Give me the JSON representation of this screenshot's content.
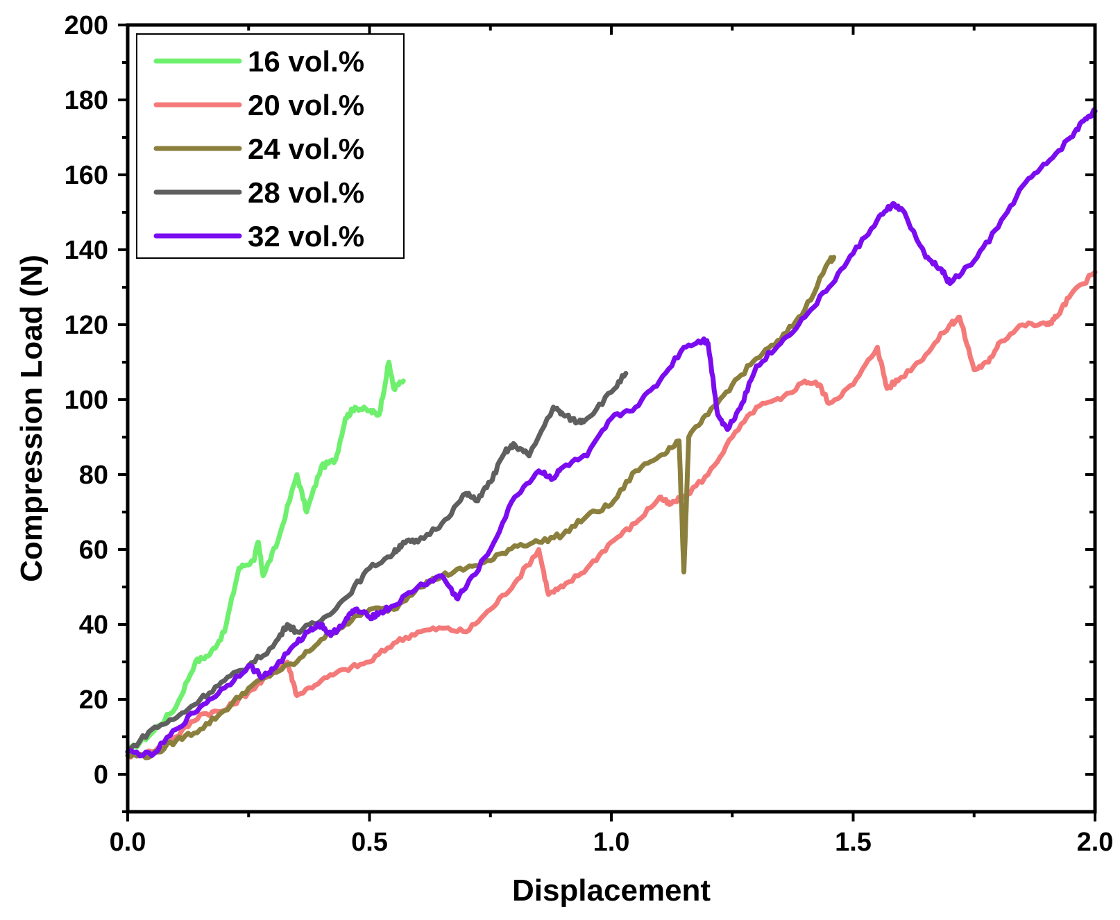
{
  "chart_data": {
    "type": "line",
    "xlabel": "Displacement",
    "ylabel": "Compression Load (N)",
    "xlim": [
      0,
      2.0
    ],
    "ylim": [
      -10,
      200
    ],
    "x_ticks": [
      "0.0",
      "0.5",
      "1.0",
      "1.5",
      "2.0"
    ],
    "y_ticks": [
      "0",
      "20",
      "40",
      "60",
      "80",
      "100",
      "120",
      "140",
      "160",
      "180",
      "200"
    ],
    "legend_position": "top-left",
    "grid": false,
    "series": [
      {
        "name": "16 vol.%",
        "color": "#6ef06e",
        "points": [
          [
            0.0,
            6
          ],
          [
            0.05,
            11
          ],
          [
            0.1,
            18
          ],
          [
            0.14,
            30
          ],
          [
            0.17,
            32
          ],
          [
            0.2,
            38
          ],
          [
            0.23,
            55
          ],
          [
            0.26,
            57
          ],
          [
            0.27,
            62
          ],
          [
            0.28,
            53
          ],
          [
            0.31,
            62
          ],
          [
            0.35,
            80
          ],
          [
            0.37,
            70
          ],
          [
            0.4,
            82
          ],
          [
            0.43,
            84
          ],
          [
            0.45,
            95
          ],
          [
            0.47,
            98
          ],
          [
            0.5,
            97
          ],
          [
            0.52,
            96
          ],
          [
            0.54,
            110
          ],
          [
            0.55,
            103
          ],
          [
            0.57,
            105
          ]
        ]
      },
      {
        "name": "20 vol.%",
        "color": "#f47a7a",
        "points": [
          [
            0.0,
            5
          ],
          [
            0.05,
            6
          ],
          [
            0.1,
            10
          ],
          [
            0.15,
            16
          ],
          [
            0.2,
            17
          ],
          [
            0.25,
            22
          ],
          [
            0.3,
            27
          ],
          [
            0.33,
            30
          ],
          [
            0.35,
            21
          ],
          [
            0.4,
            25
          ],
          [
            0.45,
            28
          ],
          [
            0.5,
            30
          ],
          [
            0.55,
            35
          ],
          [
            0.6,
            38
          ],
          [
            0.65,
            39
          ],
          [
            0.7,
            38
          ],
          [
            0.75,
            44
          ],
          [
            0.8,
            51
          ],
          [
            0.85,
            60
          ],
          [
            0.87,
            48
          ],
          [
            0.9,
            50
          ],
          [
            0.95,
            55
          ],
          [
            1.0,
            62
          ],
          [
            1.05,
            67
          ],
          [
            1.1,
            74
          ],
          [
            1.12,
            72
          ],
          [
            1.15,
            74
          ],
          [
            1.2,
            80
          ],
          [
            1.25,
            90
          ],
          [
            1.3,
            98
          ],
          [
            1.35,
            100
          ],
          [
            1.4,
            105
          ],
          [
            1.43,
            104
          ],
          [
            1.45,
            99
          ],
          [
            1.5,
            104
          ],
          [
            1.55,
            114
          ],
          [
            1.57,
            103
          ],
          [
            1.6,
            106
          ],
          [
            1.65,
            112
          ],
          [
            1.7,
            120
          ],
          [
            1.72,
            122
          ],
          [
            1.75,
            108
          ],
          [
            1.78,
            110
          ],
          [
            1.8,
            115
          ],
          [
            1.85,
            120
          ],
          [
            1.9,
            120
          ],
          [
            1.92,
            122
          ],
          [
            1.95,
            128
          ],
          [
            2.0,
            134
          ]
        ]
      },
      {
        "name": "24 vol.%",
        "color": "#8a7f3c",
        "points": [
          [
            0.0,
            5
          ],
          [
            0.05,
            5
          ],
          [
            0.1,
            9
          ],
          [
            0.15,
            12
          ],
          [
            0.2,
            17
          ],
          [
            0.25,
            23
          ],
          [
            0.3,
            27
          ],
          [
            0.35,
            30
          ],
          [
            0.4,
            36
          ],
          [
            0.45,
            40
          ],
          [
            0.5,
            44
          ],
          [
            0.55,
            44
          ],
          [
            0.6,
            50
          ],
          [
            0.65,
            53
          ],
          [
            0.7,
            55
          ],
          [
            0.75,
            57
          ],
          [
            0.8,
            61
          ],
          [
            0.85,
            62
          ],
          [
            0.9,
            64
          ],
          [
            0.95,
            69
          ],
          [
            1.0,
            72
          ],
          [
            1.05,
            81
          ],
          [
            1.1,
            85
          ],
          [
            1.14,
            89
          ],
          [
            1.15,
            54
          ],
          [
            1.16,
            90
          ],
          [
            1.2,
            96
          ],
          [
            1.25,
            104
          ],
          [
            1.3,
            111
          ],
          [
            1.35,
            116
          ],
          [
            1.4,
            124
          ],
          [
            1.45,
            137
          ],
          [
            1.46,
            138
          ]
        ]
      },
      {
        "name": "28 vol.%",
        "color": "#5f5f5f",
        "points": [
          [
            0.0,
            6
          ],
          [
            0.05,
            12
          ],
          [
            0.1,
            15
          ],
          [
            0.15,
            20
          ],
          [
            0.2,
            25
          ],
          [
            0.25,
            29
          ],
          [
            0.3,
            34
          ],
          [
            0.33,
            40
          ],
          [
            0.35,
            38
          ],
          [
            0.4,
            41
          ],
          [
            0.45,
            47
          ],
          [
            0.5,
            55
          ],
          [
            0.55,
            59
          ],
          [
            0.57,
            62
          ],
          [
            0.6,
            62
          ],
          [
            0.65,
            67
          ],
          [
            0.7,
            75
          ],
          [
            0.72,
            73
          ],
          [
            0.75,
            78
          ],
          [
            0.78,
            86
          ],
          [
            0.8,
            88
          ],
          [
            0.83,
            85
          ],
          [
            0.88,
            98
          ],
          [
            0.9,
            96
          ],
          [
            0.93,
            94
          ],
          [
            0.95,
            95
          ],
          [
            1.0,
            102
          ],
          [
            1.03,
            107
          ]
        ]
      },
      {
        "name": "32 vol.%",
        "color": "#7b0cf0",
        "points": [
          [
            0.0,
            6
          ],
          [
            0.05,
            5
          ],
          [
            0.1,
            12
          ],
          [
            0.15,
            18
          ],
          [
            0.2,
            23
          ],
          [
            0.25,
            29
          ],
          [
            0.28,
            26
          ],
          [
            0.3,
            28
          ],
          [
            0.35,
            35
          ],
          [
            0.38,
            39
          ],
          [
            0.4,
            40
          ],
          [
            0.42,
            37
          ],
          [
            0.45,
            41
          ],
          [
            0.47,
            44
          ],
          [
            0.5,
            42
          ],
          [
            0.52,
            43
          ],
          [
            0.55,
            45
          ],
          [
            0.6,
            50
          ],
          [
            0.65,
            53
          ],
          [
            0.68,
            47
          ],
          [
            0.7,
            50
          ],
          [
            0.75,
            60
          ],
          [
            0.8,
            74
          ],
          [
            0.85,
            81
          ],
          [
            0.88,
            79
          ],
          [
            0.9,
            82
          ],
          [
            0.95,
            85
          ],
          [
            1.0,
            95
          ],
          [
            1.05,
            98
          ],
          [
            1.1,
            105
          ],
          [
            1.15,
            114
          ],
          [
            1.19,
            116
          ],
          [
            1.2,
            115
          ],
          [
            1.22,
            96
          ],
          [
            1.24,
            92
          ],
          [
            1.27,
            99
          ],
          [
            1.3,
            109
          ],
          [
            1.35,
            115
          ],
          [
            1.4,
            122
          ],
          [
            1.45,
            130
          ],
          [
            1.5,
            139
          ],
          [
            1.55,
            148
          ],
          [
            1.58,
            152
          ],
          [
            1.6,
            151
          ],
          [
            1.65,
            138
          ],
          [
            1.68,
            135
          ],
          [
            1.7,
            131
          ],
          [
            1.75,
            137
          ],
          [
            1.8,
            146
          ],
          [
            1.85,
            157
          ],
          [
            1.9,
            163
          ],
          [
            1.95,
            170
          ],
          [
            1.98,
            175
          ],
          [
            2.0,
            177
          ]
        ]
      }
    ]
  }
}
